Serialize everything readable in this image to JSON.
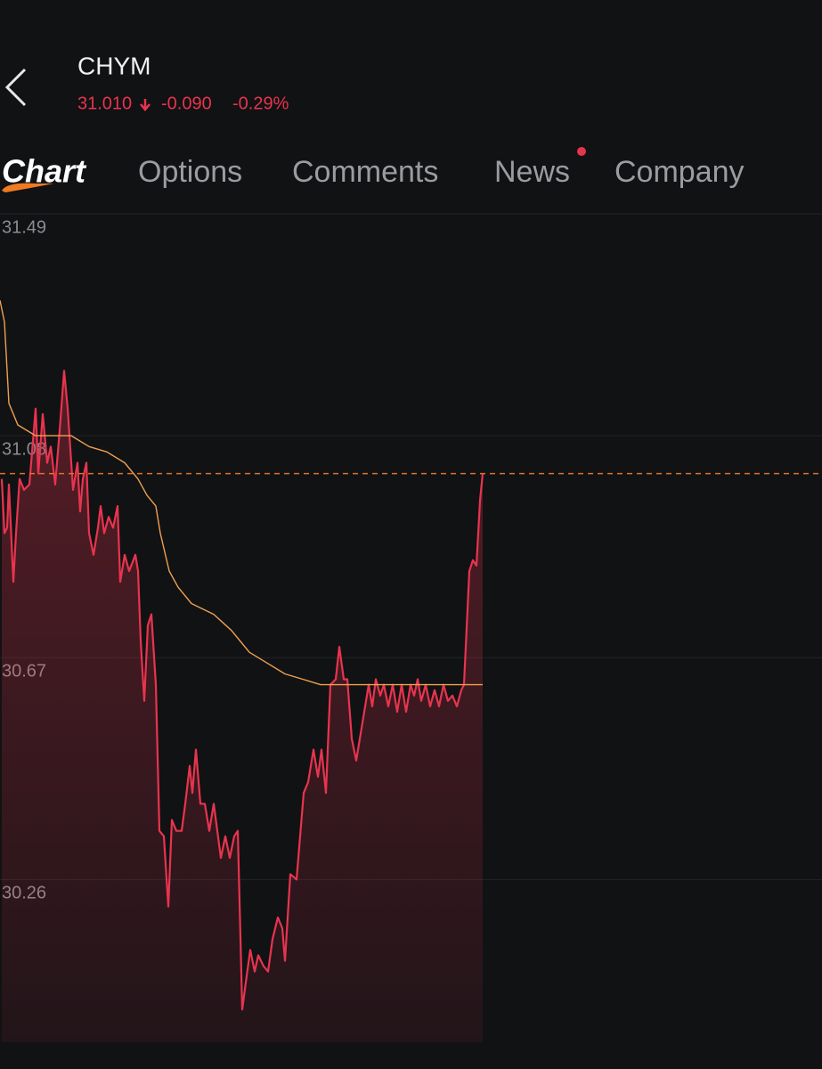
{
  "header": {
    "symbol": "CHYM",
    "price": "31.010",
    "change": "-0.090",
    "change_pct": "-0.29%"
  },
  "tabs": [
    "Chart",
    "Options",
    "Comments",
    "News",
    "Company"
  ],
  "chart_data": {
    "type": "line",
    "ylim": [
      29.91,
      31.49
    ],
    "yticks": [
      31.49,
      31.08,
      30.67,
      30.26
    ],
    "xlim": [
      0,
      923
    ],
    "grid": true,
    "price_line": 31.01,
    "price_line_color": "#e0702a",
    "series": [
      {
        "color": "#e8344e",
        "area": true,
        "x": [
          2,
          5,
          8,
          10,
          15,
          18,
          22,
          27,
          33,
          40,
          43,
          48,
          53,
          57,
          62,
          67,
          72,
          76,
          82,
          87,
          90,
          93,
          97,
          100,
          105,
          110,
          113,
          117,
          122,
          127,
          132,
          135,
          140,
          145,
          152,
          155,
          158,
          162,
          166,
          170,
          175,
          179,
          184,
          189,
          193,
          198,
          204,
          208,
          213,
          216,
          220,
          225,
          230,
          235,
          240,
          248,
          253,
          258,
          263,
          267,
          272,
          276,
          281,
          286,
          290,
          296,
          301,
          306,
          312,
          317,
          320,
          326,
          333,
          337,
          341,
          346,
          352,
          357,
          361,
          366,
          371,
          377,
          381,
          386,
          390,
          395,
          400,
          405,
          410,
          414,
          418,
          422,
          427,
          431,
          436,
          441,
          446,
          451,
          456,
          461,
          465,
          469,
          473,
          478,
          483,
          488,
          493,
          498,
          503,
          508,
          513,
          518,
          521,
          527,
          531,
          535,
          539,
          542
        ],
        "values": [
          31.0,
          30.9,
          30.91,
          30.99,
          30.81,
          30.9,
          31.0,
          30.98,
          30.99,
          31.13,
          31.01,
          31.12,
          31.03,
          31.06,
          30.99,
          31.09,
          31.2,
          31.13,
          30.98,
          31.03,
          30.94,
          31.0,
          31.03,
          30.9,
          30.86,
          30.91,
          30.95,
          30.9,
          30.93,
          30.91,
          30.95,
          30.81,
          30.86,
          30.83,
          30.86,
          30.83,
          30.7,
          30.59,
          30.73,
          30.75,
          30.62,
          30.35,
          30.34,
          30.21,
          30.37,
          30.35,
          30.35,
          30.4,
          30.47,
          30.42,
          30.5,
          30.4,
          30.4,
          30.35,
          30.4,
          30.3,
          30.34,
          30.3,
          30.34,
          30.35,
          30.02,
          30.07,
          30.13,
          30.09,
          30.12,
          30.1,
          30.09,
          30.15,
          30.19,
          30.17,
          30.11,
          30.27,
          30.26,
          30.34,
          30.42,
          30.44,
          30.5,
          30.45,
          30.5,
          30.42,
          30.62,
          30.63,
          30.69,
          30.63,
          30.63,
          30.52,
          30.48,
          30.53,
          30.58,
          30.62,
          30.58,
          30.63,
          30.6,
          30.62,
          30.58,
          30.62,
          30.57,
          30.62,
          30.57,
          30.62,
          30.6,
          30.63,
          30.59,
          30.62,
          30.58,
          30.61,
          30.58,
          30.62,
          30.59,
          30.6,
          30.58,
          30.61,
          30.62,
          30.83,
          30.85,
          30.84,
          30.96,
          31.01
        ]
      },
      {
        "color": "#f0a050",
        "area": false,
        "x": [
          0,
          5,
          10,
          20,
          40,
          60,
          80,
          100,
          120,
          140,
          155,
          165,
          175,
          180,
          190,
          200,
          215,
          240,
          260,
          270,
          280,
          300,
          320,
          340,
          360,
          400,
          450,
          500,
          520,
          542
        ],
        "values": [
          31.33,
          31.29,
          31.14,
          31.1,
          31.08,
          31.08,
          31.08,
          31.06,
          31.05,
          31.03,
          31.0,
          30.97,
          30.95,
          30.9,
          30.83,
          30.8,
          30.77,
          30.75,
          30.72,
          30.7,
          30.68,
          30.66,
          30.64,
          30.63,
          30.62,
          30.62,
          30.62,
          30.62,
          30.62,
          30.62
        ]
      }
    ]
  }
}
